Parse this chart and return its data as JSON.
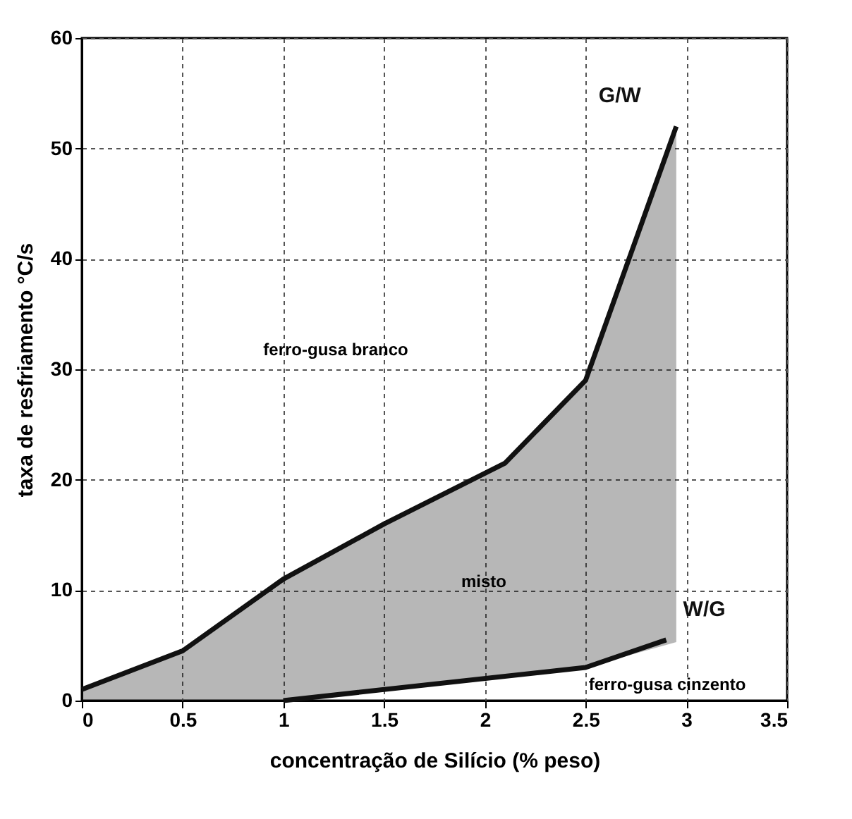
{
  "chart_data": {
    "type": "line",
    "xlabel": "concentração de Silício (% peso)",
    "ylabel": "taxa de resfriamento °C/s",
    "xlim": [
      0,
      3.5
    ],
    "xticks": [
      0,
      0.5,
      1,
      1.5,
      2,
      2.5,
      3,
      3.5
    ],
    "ylim": [
      0,
      60
    ],
    "yticks": [
      0,
      10,
      20,
      30,
      40,
      50,
      60
    ],
    "grid": true,
    "series": [
      {
        "name": "G/W",
        "color": "#111111",
        "x": [
          0,
          0.5,
          1,
          1.5,
          2.1,
          2.5,
          2.95
        ],
        "values": [
          1,
          4.5,
          11,
          16,
          21.5,
          29,
          52
        ],
        "lower": [
          0,
          0,
          0,
          1,
          2.2,
          3,
          5.3
        ],
        "upper": [
          1,
          4.5,
          11,
          16,
          21.5,
          29,
          52
        ]
      },
      {
        "name": "W/G",
        "color": "#111111",
        "x": [
          1,
          2.5,
          2.9
        ],
        "values": [
          0,
          3,
          5.5
        ]
      }
    ],
    "annotations": [
      "ferro-gusa branco",
      "misto",
      "ferro-gusa cinzento"
    ]
  }
}
